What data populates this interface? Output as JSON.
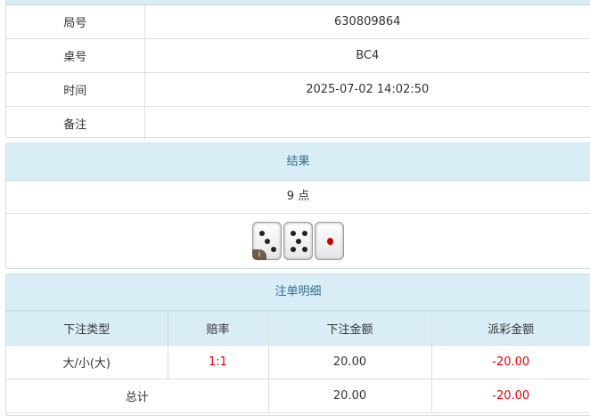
{
  "info": {
    "rows": [
      {
        "label": "局号",
        "value": "630809864"
      },
      {
        "label": "桌号",
        "value": "BC4"
      },
      {
        "label": "时间",
        "value": "2025-07-02 14:02:50"
      },
      {
        "label": "备注",
        "value": ""
      }
    ]
  },
  "result": {
    "title": "结果",
    "points": "9 点",
    "dice": [
      3,
      5,
      1
    ],
    "info_badge": "i"
  },
  "bets": {
    "title": "注单明细",
    "headers": [
      "下注类型",
      "赔率",
      "下注金额",
      "派彩金额"
    ],
    "rows": [
      {
        "type": "大/小(大)",
        "odds": "1:1",
        "amount": "20.00",
        "payout": "-20.00"
      }
    ],
    "total": {
      "label": "总计",
      "amount": "20.00",
      "payout": "-20.00"
    }
  },
  "colors": {
    "header_bg": "#d9edf7",
    "header_text": "#31708f",
    "negative": "#ee0000"
  }
}
